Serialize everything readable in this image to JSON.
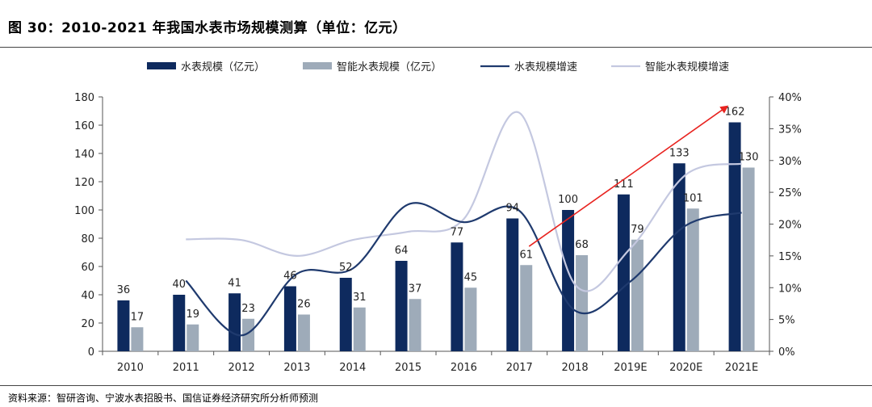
{
  "header": {
    "title": "图 30：2010-2021 年我国水表市场规模测算（单位：亿元）"
  },
  "footer": {
    "source": "资料来源：智研咨询、宁波水表招股书、国信证券经济研究所分析师预测"
  },
  "colors": {
    "water_meter_bar": "#0e2a5e",
    "smart_meter_bar": "#9eabb9",
    "water_meter_line": "#1f3a6e",
    "smart_meter_line": "#c4c8e0",
    "arrow": "#e8231f",
    "axis": "#555555"
  },
  "chart_data": {
    "type": "bar",
    "categories": [
      "2010",
      "2011",
      "2012",
      "2013",
      "2014",
      "2015",
      "2016",
      "2017",
      "2018",
      "2019E",
      "2020E",
      "2021E"
    ],
    "series": [
      {
        "name": "水表规模（亿元）",
        "kind": "bar",
        "axis": "left",
        "values": [
          36,
          40,
          41,
          46,
          52,
          64,
          77,
          94,
          100,
          111,
          133,
          162
        ]
      },
      {
        "name": "智能水表规模（亿元）",
        "kind": "bar",
        "axis": "left",
        "values": [
          17,
          19,
          23,
          26,
          31,
          37,
          45,
          61,
          68,
          79,
          101,
          130
        ]
      },
      {
        "name": "水表规模增速",
        "kind": "line",
        "axis": "right",
        "values": [
          null,
          11.1,
          2.5,
          12.2,
          13.0,
          23.1,
          20.3,
          22.1,
          6.4,
          11.0,
          19.8,
          21.8
        ]
      },
      {
        "name": "智能水表规模增速",
        "kind": "line",
        "axis": "right",
        "values": [
          null,
          17.6,
          17.5,
          15.0,
          17.5,
          18.8,
          20.8,
          37.5,
          10.5,
          16.2,
          27.8,
          29.5
        ]
      }
    ],
    "left_ticks": [
      "0",
      "20",
      "40",
      "60",
      "80",
      "100",
      "120",
      "140",
      "160",
      "180"
    ],
    "right_ticks": [
      "0%",
      "5%",
      "10%",
      "15%",
      "20%",
      "25%",
      "30%",
      "35%",
      "40%"
    ],
    "ylim_left": [
      0,
      180
    ],
    "ylim_right": [
      0,
      40
    ],
    "legend_position": "top",
    "annotations": [
      {
        "type": "arrow",
        "from": [
          "2017",
          16.5
        ],
        "to": [
          "2021E",
          38.5
        ],
        "axis": "right",
        "note": "trend arrow"
      }
    ]
  }
}
